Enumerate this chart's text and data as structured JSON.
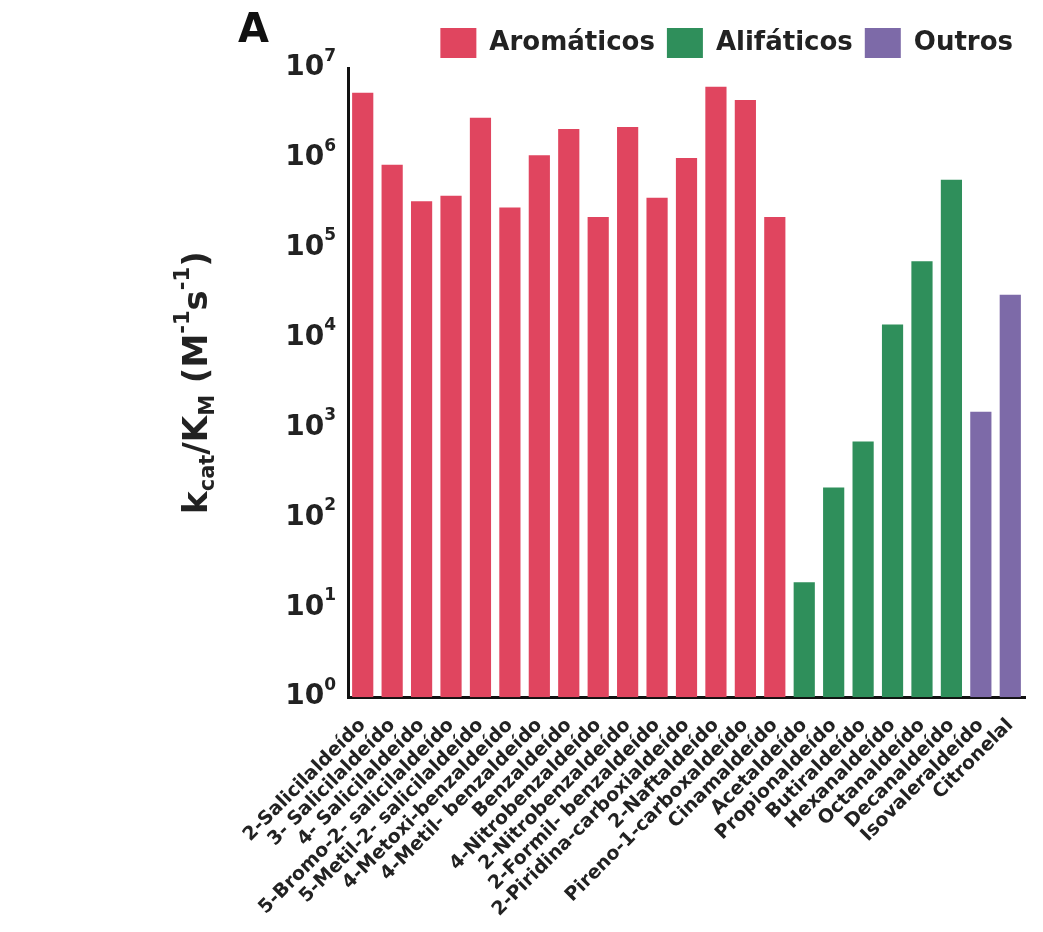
{
  "chart_data": {
    "type": "bar",
    "title": "A",
    "ylabel": "k$_{cat}$/K$_{M}$ (M$^{-1}$s$^{-1}$)",
    "log": "y",
    "grid": false,
    "legend": "top right",
    "categories": [
      "2-Salicilaldeído",
      "3- Salicilaldeído",
      "4- Salicilaldeído",
      "5-Bromo-2- salicilaldeído",
      "5-Metil-2- salicilaldeído",
      "4-Metoxi-benzaldeído",
      "4-Metil- benzaldeído",
      "Benzaldeído",
      "4-Nitrobenzaldeído",
      "2-Nitrobenzaldeído",
      "2-Formil- benzaldeído",
      "2-Piridina-carboxialdeído",
      "2-Naftaldeído",
      "Pireno-1-carboxaldeído",
      "Cinamaldeído",
      "Acetaldeído",
      "Propionaldeído",
      "Butiraldeído",
      "Hexanaldeído",
      "Octanaldeído",
      "Decanaldeído",
      "Isovaleraldeído",
      "Citronelal"
    ],
    "ylim": [
      1,
      10000000
    ],
    "yticks": [
      {
        "value": 1,
        "label": "10$^{0}$"
      },
      {
        "value": 10,
        "label": "10$^{1}$"
      },
      {
        "value": 100,
        "label": "10$^{2}$"
      },
      {
        "value": 1000,
        "label": "10$^{3}$"
      },
      {
        "value": 10000,
        "label": "10$^{4}$"
      },
      {
        "value": 100000,
        "label": "10$^{5}$"
      },
      {
        "value": 1000000,
        "label": "10$^{6}$"
      },
      {
        "value": 10000000,
        "label": "10$^{7}$"
      }
    ],
    "series": [
      {
        "name": "Aromáticos",
        "color": "#e0455f",
        "values": [
          5300000,
          840000,
          330000,
          380000,
          2800000,
          280000,
          1070000,
          2100000,
          220000,
          2200000,
          360000,
          1000000,
          6200000,
          4400000,
          220000,
          null,
          null,
          null,
          null,
          null,
          null,
          null,
          null
        ]
      },
      {
        "name": "Alifáticos",
        "color": "#2f8f5b",
        "values": [
          null,
          null,
          null,
          null,
          null,
          null,
          null,
          null,
          null,
          null,
          null,
          null,
          null,
          null,
          null,
          19,
          215,
          700,
          14000,
          71000,
          570000,
          null,
          null
        ]
      },
      {
        "name": "Outros",
        "color": "#7d6aa8",
        "values": [
          null,
          null,
          null,
          null,
          null,
          null,
          null,
          null,
          null,
          null,
          null,
          null,
          null,
          null,
          null,
          null,
          null,
          null,
          null,
          null,
          null,
          1500,
          30000
        ]
      }
    ]
  }
}
